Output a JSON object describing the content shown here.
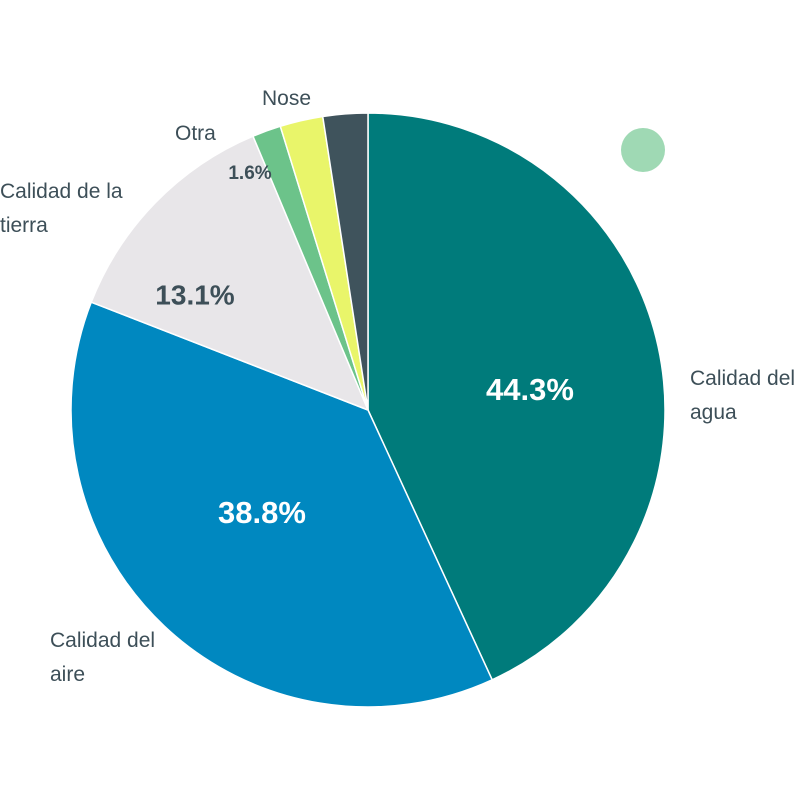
{
  "chart_data": {
    "type": "pie",
    "categories": [
      "Calidad del agua",
      "Calidad del aire",
      "Calidad de la tierra",
      "Otra",
      null,
      "Nose"
    ],
    "values": [
      44.3,
      38.8,
      13.1,
      1.6,
      2.4,
      2.5
    ],
    "value_labels": [
      "44.3%",
      "38.8%",
      "13.1%",
      "1.6%",
      null,
      null
    ],
    "colors": [
      "#007b7b",
      "#0088c0",
      "#e8e6e9",
      "#6cc38a",
      "#e9f56a",
      "#3f535c"
    ]
  }
}
